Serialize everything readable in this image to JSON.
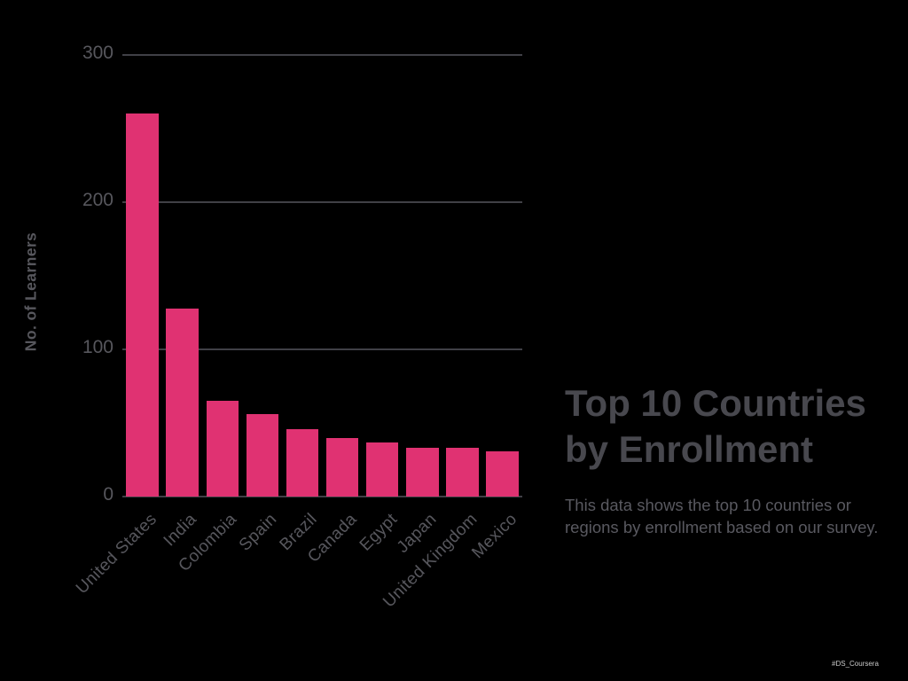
{
  "title": {
    "line1": "Top 10 Countries",
    "line2": "by Enrollment"
  },
  "subtitle": {
    "line1": "This data shows the top 10 countries or",
    "line2": "regions by enrollment based on our survey."
  },
  "watermark": "#DS_Coursera",
  "colors": {
    "background": "#000000",
    "bar": "#E03272",
    "gridline": "#404046",
    "axis_text": "#57575d",
    "title_text": "#48484e",
    "subtitle_text": "#595960",
    "watermark_text": "#c8c8c8"
  },
  "chart_data": {
    "type": "bar",
    "categories": [
      "United States",
      "India",
      "Colombia",
      "Spain",
      "Brazil",
      "Canada",
      "Egypt",
      "Japan",
      "United Kingdom",
      "Mexico"
    ],
    "values": [
      260,
      128,
      65,
      56,
      46,
      40,
      37,
      33,
      33,
      31
    ],
    "title": "Top 10 Countries by Enrollment",
    "xlabel": "",
    "ylabel": "No. of Learners",
    "yticks": [
      0,
      100,
      200,
      300
    ],
    "ylim": [
      0,
      300
    ],
    "grid": true,
    "legend": false
  }
}
